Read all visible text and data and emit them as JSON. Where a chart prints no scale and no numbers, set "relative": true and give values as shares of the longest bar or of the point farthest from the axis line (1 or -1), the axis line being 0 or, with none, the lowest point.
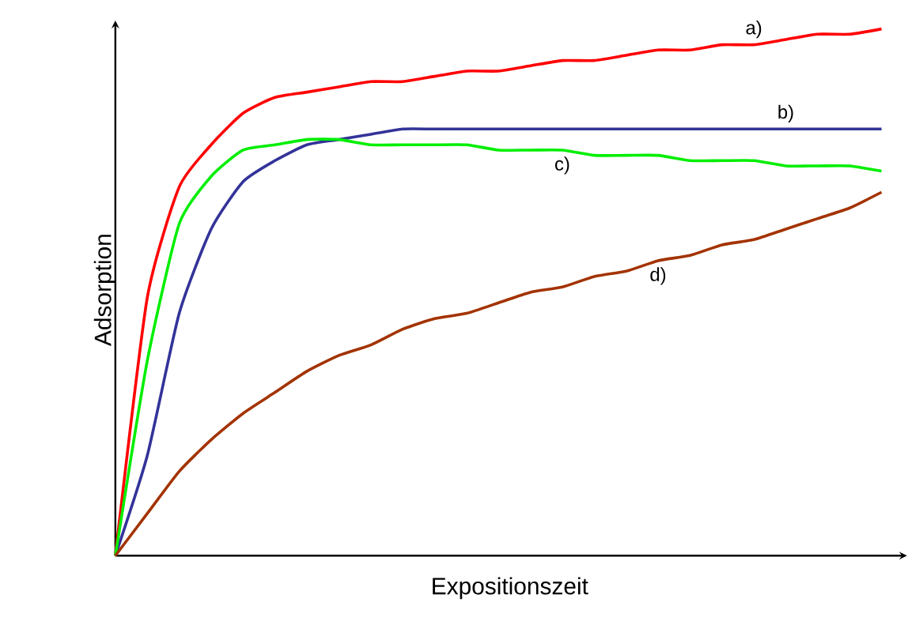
{
  "chart_data": {
    "type": "line",
    "relative": true,
    "xlabel": "Expositionszeit",
    "ylabel": "Adsorption",
    "marker": "none",
    "categories": [
      null,
      null,
      null,
      null,
      null,
      null,
      null,
      null,
      null,
      null,
      null,
      null,
      null,
      null,
      null,
      null,
      null,
      null,
      null,
      null,
      null,
      null,
      null,
      null,
      null
    ],
    "series": [
      {
        "name": "a)",
        "color": "#ff0000",
        "values": [
          0,
          0.49,
          0.7,
          0.78,
          0.84,
          0.87,
          0.88,
          0.89,
          0.9,
          0.9,
          0.91,
          0.92,
          0.92,
          0.93,
          0.94,
          0.94,
          0.95,
          0.96,
          0.96,
          0.97,
          0.97,
          0.98,
          0.99,
          0.99,
          1
        ]
      },
      {
        "name": "b)",
        "color": "#333399",
        "values": [
          0,
          0.19,
          0.46,
          0.62,
          0.71,
          0.75,
          0.78,
          0.79,
          0.8,
          0.81,
          0.81,
          0.81,
          0.81,
          0.81,
          0.81,
          0.81,
          0.81,
          0.81,
          0.81,
          0.81,
          0.81,
          0.81,
          0.81,
          0.81,
          0.81
        ]
      },
      {
        "name": "c)",
        "color": "#00ee00",
        "values": [
          0,
          0.37,
          0.63,
          0.72,
          0.77,
          0.78,
          0.79,
          0.79,
          0.78,
          0.78,
          0.78,
          0.78,
          0.77,
          0.77,
          0.77,
          0.76,
          0.76,
          0.76,
          0.75,
          0.75,
          0.75,
          0.74,
          0.74,
          0.74,
          0.73
        ]
      },
      {
        "name": "d)",
        "color": "#a33300",
        "values": [
          0,
          0.08,
          0.16,
          0.22,
          0.27,
          0.31,
          0.35,
          0.38,
          0.4,
          0.43,
          0.45,
          0.46,
          0.48,
          0.5,
          0.51,
          0.53,
          0.54,
          0.56,
          0.57,
          0.59,
          0.6,
          0.62,
          0.64,
          0.66,
          0.69
        ]
      }
    ]
  }
}
